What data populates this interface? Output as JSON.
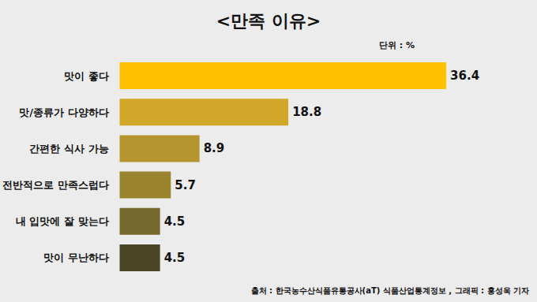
{
  "chart_data": {
    "type": "bar",
    "orientation": "horizontal",
    "title": "<만족 이유>",
    "annotations": [
      "단위 : %",
      "출처 : 한국농수산식품유통공사(aT) 식품산업통계정보 , 그래픽 : 홍성욱 기자"
    ],
    "categories": [
      "맛이 좋다",
      "맛/종류가 다양하다",
      "간편한 식사 가능",
      "전반적으로 만족스럽다",
      "내 입맛에 잘 맞는다",
      "맛이 무난하다"
    ],
    "values": [
      36.4,
      18.8,
      8.9,
      5.7,
      4.5,
      4.5
    ],
    "colors": [
      "#ffc000",
      "#d1a72a",
      "#b4952f",
      "#9a832f",
      "#77692d",
      "#4b4527"
    ],
    "xlim": [
      0,
      40
    ],
    "xticks": [
      0,
      40
    ],
    "grid": false,
    "data_labels": true,
    "tick_labels": "y"
  }
}
